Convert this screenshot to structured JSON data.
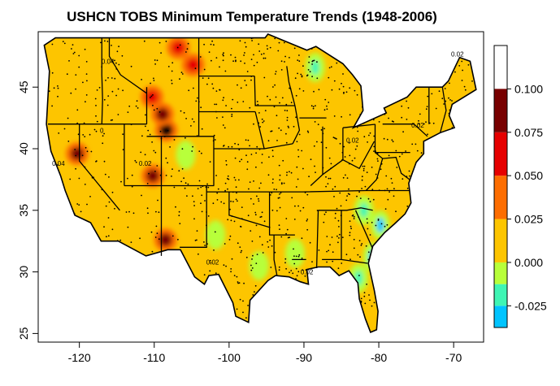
{
  "chart_data": {
    "type": "heatmap",
    "title": "USHCN TOBS Minimum Temperature Trends (1948-2006)",
    "xlabel": "",
    "ylabel": "",
    "x_ticks": [
      -120,
      -110,
      -100,
      -90,
      -80,
      -70
    ],
    "y_ticks": [
      25,
      30,
      35,
      40,
      45
    ],
    "xlim": [
      -125.5,
      -66
    ],
    "ylim": [
      24.3,
      49.5
    ],
    "colorbar": {
      "levels": [
        -0.0375,
        -0.025,
        -0.0125,
        0.0,
        0.025,
        0.05,
        0.075,
        0.1,
        0.125
      ],
      "tick_labels": [
        "-0.025",
        "0.000",
        "0.025",
        "0.050",
        "0.075",
        "0.100"
      ],
      "tick_values": [
        -0.025,
        0.0,
        0.025,
        0.05,
        0.075,
        0.1
      ],
      "colors": [
        "#00c4ff",
        "#3ff5b4",
        "#b8ff3a",
        "#fdc500",
        "#fd6d00",
        "#e60000",
        "#780000"
      ]
    },
    "contour_labels": [
      "0.02",
      "0.04",
      "0",
      "0.02",
      "0.02",
      "0.04",
      "0.02",
      "0.02",
      "0.02"
    ],
    "hotspots": [
      {
        "lon": -108.4,
        "lat": 41.5,
        "value": 0.11
      },
      {
        "lon": -120.3,
        "lat": 39.6,
        "value": 0.085
      },
      {
        "lon": -110.2,
        "lat": 37.8,
        "value": 0.078
      },
      {
        "lon": -108.5,
        "lat": 32.6,
        "value": 0.075
      },
      {
        "lon": -104.8,
        "lat": 46.8,
        "value": 0.065
      },
      {
        "lon": -106.8,
        "lat": 48.2,
        "value": 0.07
      },
      {
        "lon": -110.3,
        "lat": 44.2,
        "value": 0.06
      },
      {
        "lon": -108.9,
        "lat": 42.8,
        "value": 0.09
      }
    ],
    "coldspots": [
      {
        "lon": -79.8,
        "lat": 33.8,
        "value": -0.03
      },
      {
        "lon": -80.8,
        "lat": 31.2,
        "value": -0.028
      },
      {
        "lon": -82.7,
        "lat": 29.5,
        "value": -0.02
      },
      {
        "lon": -88.5,
        "lat": 46.6,
        "value": -0.025
      },
      {
        "lon": -82.0,
        "lat": 35.0,
        "value": -0.015
      },
      {
        "lon": -91.2,
        "lat": 31.5,
        "value": -0.012
      },
      {
        "lon": -101.8,
        "lat": 33.0,
        "value": -0.012
      },
      {
        "lon": -96.0,
        "lat": 30.5,
        "value": -0.01
      },
      {
        "lon": -105.8,
        "lat": 39.5,
        "value": -0.01
      }
    ],
    "grid": false,
    "legend": "right colorbar"
  }
}
